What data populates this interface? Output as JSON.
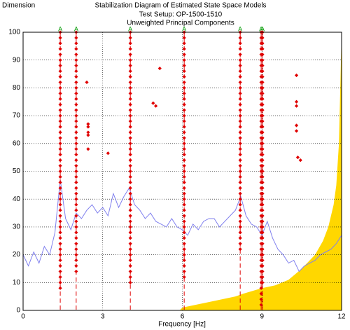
{
  "chart_data": {
    "type": "scatter",
    "title": "Stabilization Diagram of Estimated State Space Models",
    "subtitle": [
      "Test Setup: OP-1500-1510",
      "Unweighted Principal Components"
    ],
    "y_label": "Dimension",
    "x_label": "Frequency [Hz]",
    "xlim": [
      0,
      12
    ],
    "xticks": [
      0,
      3,
      6,
      9,
      12
    ],
    "ylim": [
      0,
      100
    ],
    "yticks": [
      0,
      10,
      20,
      30,
      40,
      50,
      60,
      70,
      80,
      90,
      100
    ],
    "grid": true,
    "markers": [
      {
        "x": 1.4,
        "label": "A"
      },
      {
        "x": 2.0,
        "label": "A"
      },
      {
        "x": 4.04,
        "label": "A"
      },
      {
        "x": 6.07,
        "label": "A"
      },
      {
        "x": 8.18,
        "label": "A"
      },
      {
        "x": 8.97,
        "label": "A"
      },
      {
        "x": 9.02,
        "label": "A"
      }
    ],
    "marker_color": "#009900",
    "series": [
      {
        "type": "area",
        "color": "#ffd700",
        "x": [
          5.9,
          6.0,
          7.0,
          8.0,
          8.3,
          9.0,
          9.5,
          10.0,
          10.5,
          11.0,
          11.3,
          11.5,
          11.7,
          11.8,
          11.9,
          12.0
        ],
        "values": [
          0,
          1,
          3,
          5,
          6,
          8,
          9,
          11,
          15,
          20,
          25,
          30,
          38,
          45,
          60,
          100
        ]
      },
      {
        "type": "line",
        "color": "#8080ee",
        "x": [
          0,
          0.2,
          0.4,
          0.6,
          0.8,
          1.0,
          1.2,
          1.4,
          1.6,
          1.8,
          2.0,
          2.2,
          2.4,
          2.6,
          2.8,
          3.0,
          3.2,
          3.4,
          3.6,
          3.8,
          4.0,
          4.2,
          4.4,
          4.6,
          4.8,
          5.0,
          5.2,
          5.4,
          5.6,
          5.8,
          6.0,
          6.2,
          6.4,
          6.6,
          6.8,
          7.0,
          7.2,
          7.4,
          7.6,
          7.8,
          8.0,
          8.2,
          8.4,
          8.6,
          8.8,
          9.0,
          9.2,
          9.4,
          9.6,
          9.8,
          10.0,
          10.2,
          10.4,
          10.6,
          10.8,
          11.0,
          11.2,
          11.4,
          11.6,
          11.8,
          12.0
        ],
        "values": [
          20,
          16,
          21,
          17,
          23,
          20,
          28,
          47,
          33,
          29,
          35,
          33,
          36,
          38,
          35,
          37,
          34,
          42,
          37,
          41,
          44,
          38,
          36,
          33,
          35,
          32,
          31,
          30,
          33,
          30,
          29,
          27,
          31,
          29,
          32,
          33,
          33,
          30,
          32,
          34,
          36,
          41,
          34,
          31,
          30,
          27,
          32,
          26,
          22,
          20,
          17,
          18,
          14,
          16,
          17,
          18,
          20,
          21,
          22,
          24,
          27
        ]
      },
      {
        "type": "scatter",
        "color": "#e00000",
        "x": 1.4,
        "values": [
          8,
          10,
          12,
          14,
          16,
          18,
          20,
          22,
          24,
          26,
          28,
          30,
          32,
          34,
          36,
          38,
          40,
          42,
          44,
          46,
          48,
          50,
          52,
          54,
          56,
          58,
          60,
          62,
          64,
          66,
          68,
          70,
          72,
          74,
          76,
          78,
          80,
          82,
          84,
          86,
          88,
          90,
          92,
          94,
          96,
          98,
          100
        ]
      },
      {
        "type": "scatter",
        "color": "#e00000",
        "x": 2.0,
        "values": [
          14,
          16,
          18,
          20,
          22,
          24,
          26,
          28,
          30,
          32,
          34,
          36,
          38,
          40,
          42,
          44,
          46,
          48,
          50,
          52,
          54,
          56,
          58,
          60,
          62,
          64,
          66,
          68,
          70,
          72,
          74,
          76,
          78,
          80,
          82,
          84,
          86,
          88,
          90,
          92,
          94,
          96,
          98,
          100
        ]
      },
      {
        "type": "scatter",
        "color": "#e00000",
        "x": 4.04,
        "values": [
          10,
          12,
          14,
          16,
          18,
          20,
          22,
          24,
          26,
          28,
          30,
          32,
          34,
          36,
          38,
          40,
          42,
          44,
          46,
          48,
          50,
          52,
          54,
          56,
          58,
          60,
          62,
          64,
          66,
          68,
          70,
          72,
          74,
          76,
          78,
          80,
          82,
          84,
          86,
          88,
          90,
          92,
          94,
          96,
          98,
          100
        ]
      },
      {
        "type": "scatter",
        "color": "#e00000",
        "x": 6.07,
        "values": [
          12,
          14,
          16,
          18,
          20,
          22,
          24,
          26,
          28,
          30,
          32,
          34,
          36,
          38,
          40,
          42,
          44,
          46,
          48,
          50,
          52,
          54,
          56,
          58,
          60,
          62,
          64,
          66,
          68,
          70,
          72,
          74,
          76,
          78,
          80,
          82,
          84,
          86,
          88,
          90,
          92,
          94,
          96,
          98,
          100
        ]
      },
      {
        "type": "scatter",
        "color": "#e00000",
        "x": 8.18,
        "values": [
          22,
          24,
          26,
          28,
          30,
          32,
          34,
          36,
          38,
          40,
          42,
          44,
          46,
          48,
          50,
          52,
          54,
          56,
          58,
          60,
          62,
          64,
          66,
          68,
          70,
          72,
          74,
          76,
          78,
          80,
          82,
          84,
          86,
          88,
          90,
          92,
          94,
          96,
          98,
          100
        ]
      },
      {
        "type": "scatter",
        "color": "#e00000",
        "x": 8.97,
        "values": [
          2,
          4,
          6,
          8,
          10,
          12,
          14,
          16,
          18,
          20,
          22,
          24,
          26,
          28,
          30,
          32,
          34,
          36,
          38,
          40,
          42,
          44,
          46,
          48,
          50,
          52,
          54,
          56,
          58,
          60,
          62,
          64,
          66,
          68,
          70,
          72,
          74,
          76,
          78,
          80,
          82,
          84,
          86,
          88,
          90,
          92,
          94,
          96,
          98,
          100
        ]
      },
      {
        "type": "scatter",
        "color": "#e00000",
        "x": 9.02,
        "values": [
          10,
          12,
          14,
          16,
          18,
          20,
          22,
          24,
          26,
          28,
          30,
          32,
          34,
          36,
          38,
          40,
          42,
          44,
          46,
          48,
          50,
          52,
          54,
          56,
          58,
          60,
          62,
          64,
          66,
          68,
          70,
          72,
          74,
          76,
          78,
          80,
          82,
          84,
          86,
          88,
          90,
          92,
          94,
          96,
          98,
          100
        ]
      },
      {
        "type": "scatter",
        "color": "#e00000",
        "x": [
          2.4,
          2.45,
          2.45,
          2.45,
          2.45,
          2.45,
          3.2,
          4.9,
          5.0,
          5.15,
          10.3,
          10.3,
          10.3,
          10.3,
          10.3,
          10.35,
          10.45
        ],
        "values": [
          82,
          67,
          66,
          64,
          63,
          58,
          56.5,
          74.5,
          73.5,
          87,
          84.5,
          75,
          73.5,
          66.5,
          64.5,
          55,
          54
        ]
      }
    ]
  }
}
